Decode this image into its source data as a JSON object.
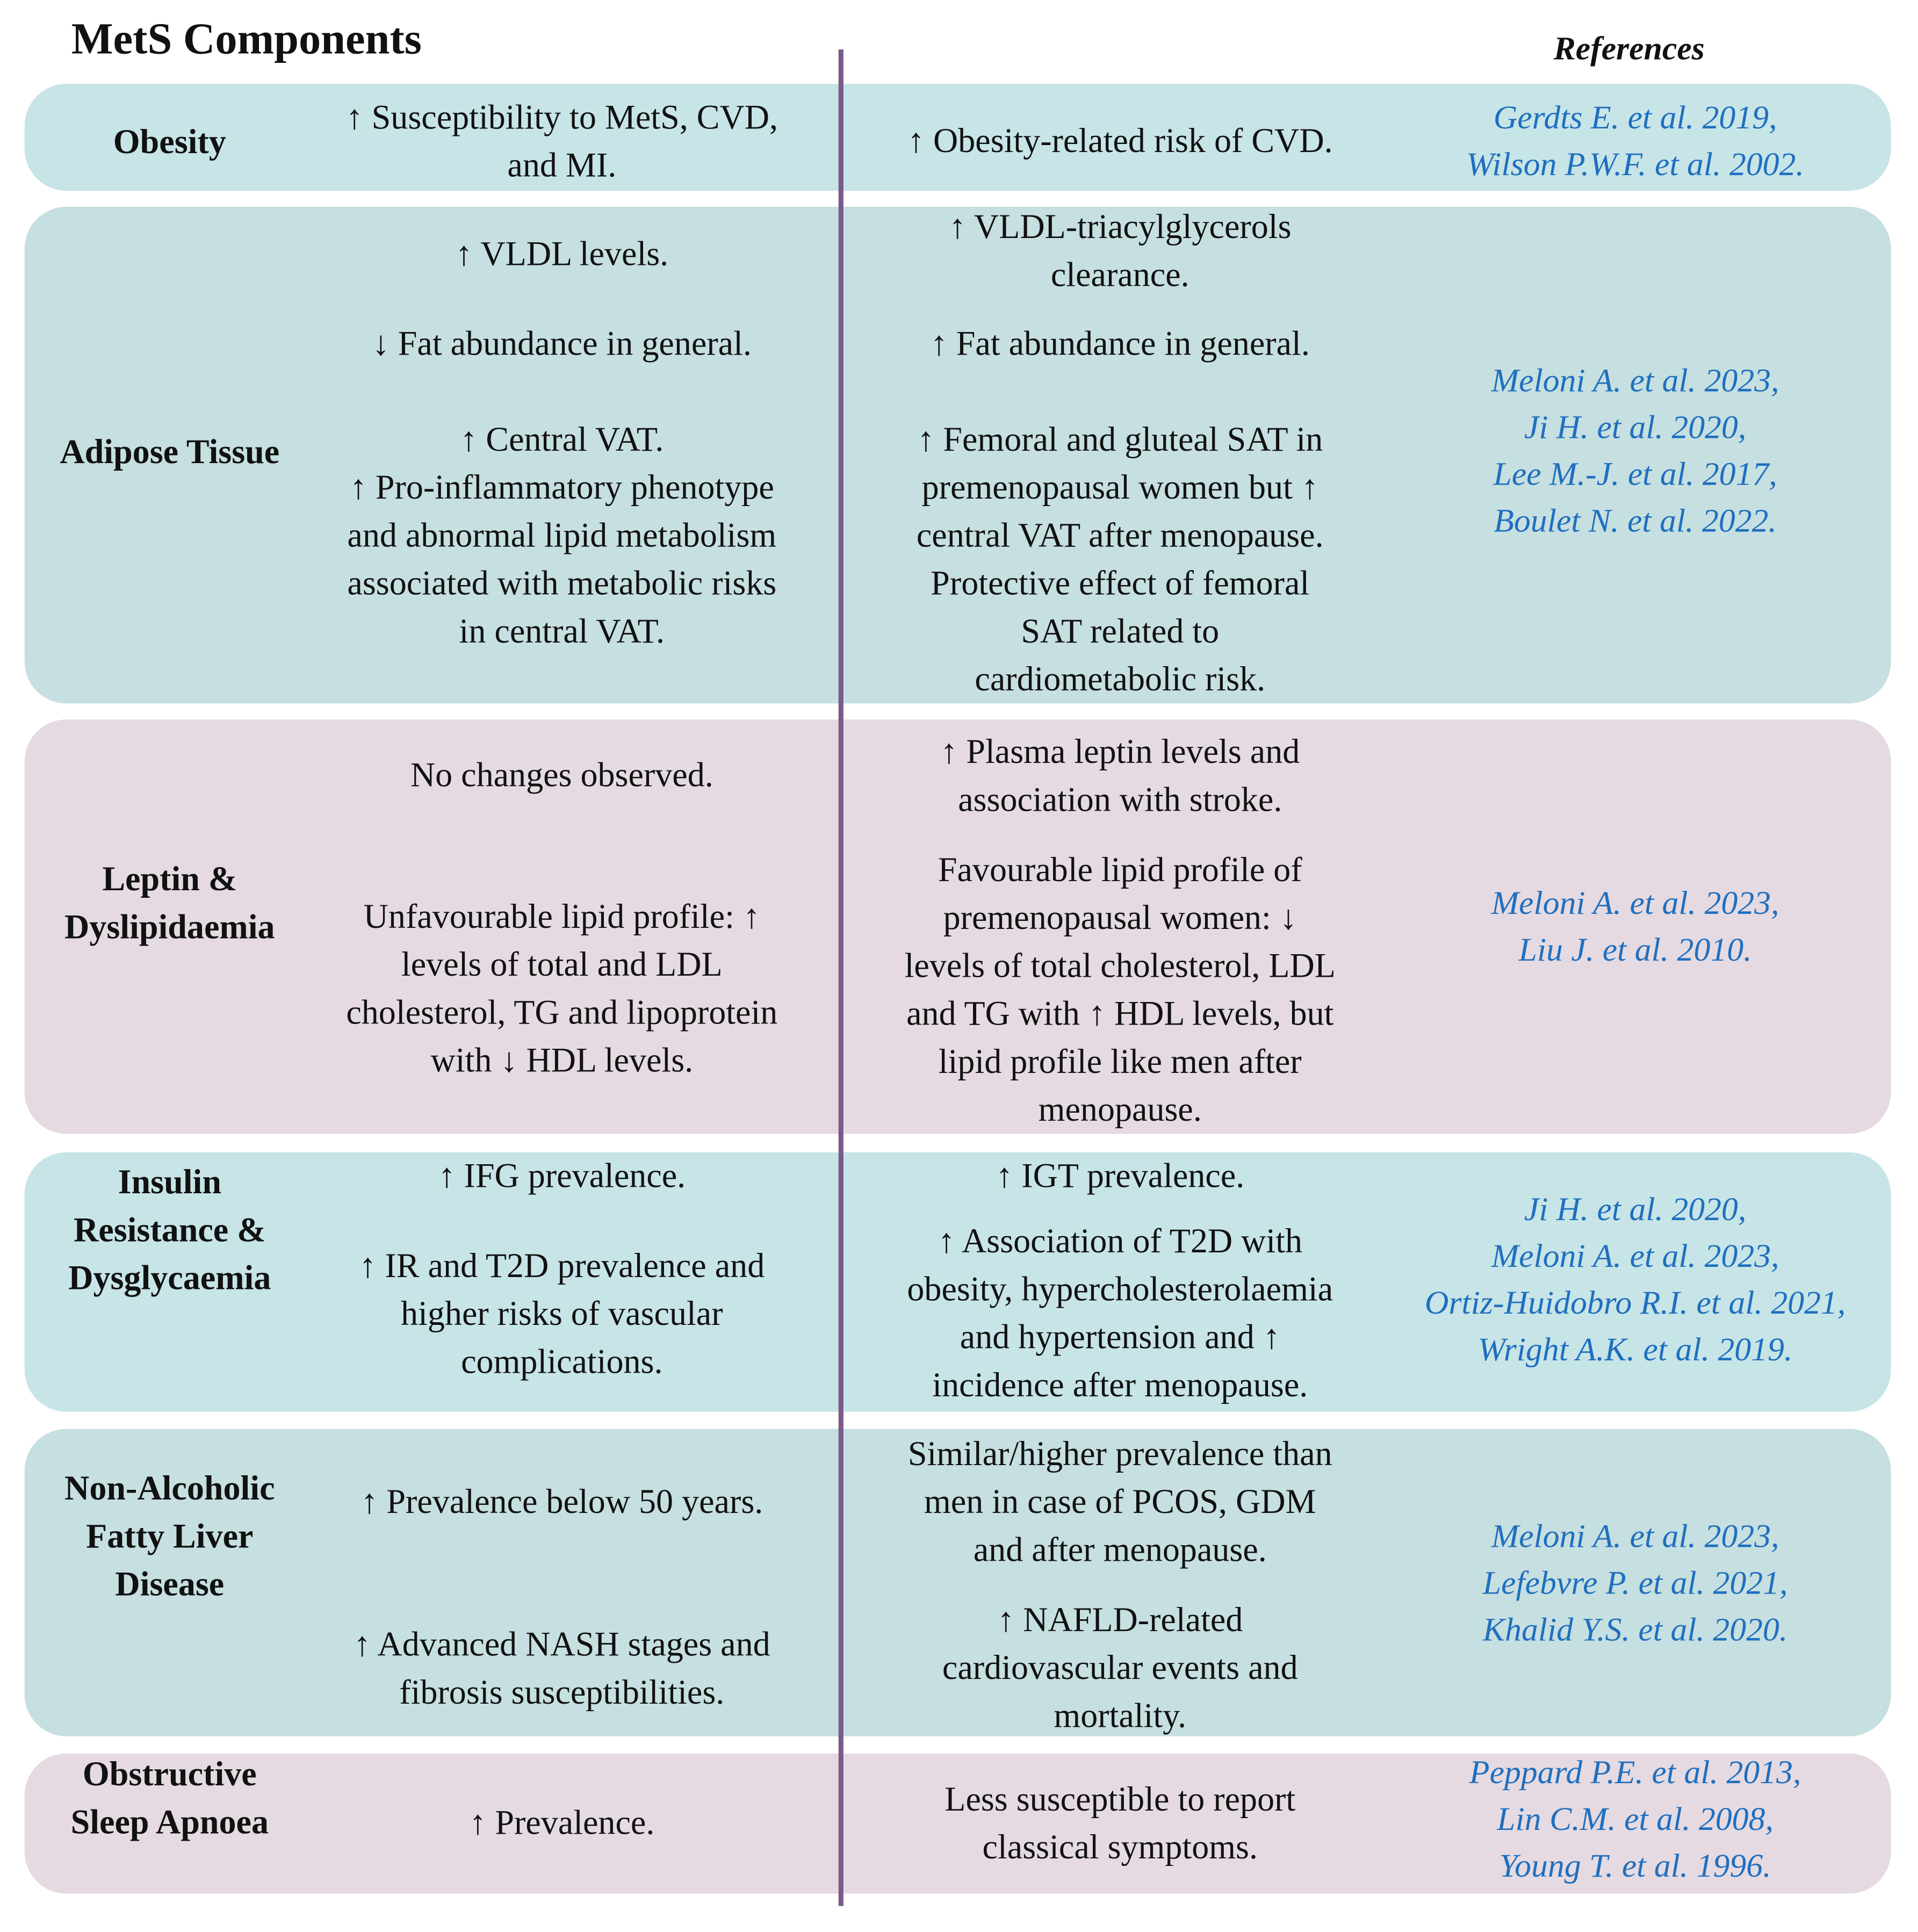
{
  "title": "MetS Components",
  "references_header": "References",
  "rows": [
    {
      "component": [
        "Obesity"
      ],
      "men": [
        [
          "↑ Susceptibility to MetS, CVD,",
          "and MI."
        ]
      ],
      "women": [
        [
          "↑ Obesity-related risk of CVD."
        ]
      ],
      "references": [
        "Gerdts E. et al. 2019,",
        "Wilson P.W.F. et al. 2002."
      ]
    },
    {
      "component": [
        "Adipose Tissue"
      ],
      "men": [
        [
          "↑ VLDL levels."
        ],
        [
          "↓ Fat abundance in general."
        ],
        [
          "↑ Central VAT.",
          "↑ Pro-inflammatory phenotype",
          "and abnormal lipid metabolism",
          "associated with metabolic risks",
          "in central VAT."
        ]
      ],
      "women": [
        [
          "↑ VLDL-triacylglycerols",
          "clearance."
        ],
        [
          "↑ Fat abundance in general."
        ],
        [
          "↑ Femoral and gluteal SAT in",
          "premenopausal women but ↑",
          "central VAT after menopause.",
          "Protective effect of femoral",
          "SAT related to",
          "cardiometabolic risk."
        ]
      ],
      "references": [
        "Meloni A. et al. 2023,",
        "Ji H. et al. 2020,",
        "Lee M.-J. et al. 2017,",
        "Boulet N. et al. 2022."
      ]
    },
    {
      "component": [
        "Leptin &",
        "Dyslipidaemia"
      ],
      "men": [
        [
          "No changes observed."
        ],
        [
          "Unfavourable lipid profile: ↑",
          "levels of total and LDL",
          "cholesterol, TG and lipoprotein",
          "with ↓ HDL levels."
        ]
      ],
      "women": [
        [
          "↑ Plasma leptin levels and",
          "association with stroke."
        ],
        [
          "Favourable lipid profile of",
          "premenopausal women: ↓",
          "levels of total cholesterol, LDL",
          "and TG with ↑ HDL levels, but",
          "lipid profile like men after",
          "menopause."
        ]
      ],
      "references": [
        "Meloni A. et al. 2023,",
        "Liu J. et al. 2010."
      ]
    },
    {
      "component": [
        "Insulin",
        "Resistance &",
        "Dysglycaemia"
      ],
      "men": [
        [
          "↑ IFG prevalence."
        ],
        [
          "↑ IR and T2D prevalence and",
          "higher risks of vascular",
          "complications."
        ]
      ],
      "women": [
        [
          "↑ IGT prevalence."
        ],
        [
          "↑ Association of T2D with",
          "obesity, hypercholesterolaemia",
          "and hypertension and ↑",
          "incidence after menopause."
        ]
      ],
      "references": [
        "Ji H. et al. 2020,",
        "Meloni A. et al. 2023,",
        "Ortiz-Huidobro R.I. et al. 2021,",
        "Wright A.K. et al. 2019."
      ]
    },
    {
      "component": [
        "Non-Alcoholic",
        "Fatty Liver",
        "Disease"
      ],
      "men": [
        [
          "↑ Prevalence below 50 years."
        ],
        [
          "↑ Advanced NASH stages and",
          "fibrosis susceptibilities."
        ]
      ],
      "women": [
        [
          "Similar/higher prevalence than",
          "men in case of PCOS, GDM",
          "and after menopause."
        ],
        [
          "↑ NAFLD-related",
          "cardiovascular events and",
          "mortality."
        ]
      ],
      "references": [
        "Meloni A. et al. 2023,",
        "Lefebvre P. et al. 2021,",
        "Khalid Y.S. et al. 2020."
      ]
    },
    {
      "component": [
        "Obstructive",
        "Sleep Apnoea"
      ],
      "men": [
        [
          "↑ Prevalence."
        ]
      ],
      "women": [
        [
          "Less susceptible to report",
          "classical symptoms."
        ]
      ],
      "references": [
        "Peppard P.E. et al. 2013,",
        "Lin C.M. et al. 2008,",
        "Young T. et al. 1996."
      ]
    }
  ]
}
